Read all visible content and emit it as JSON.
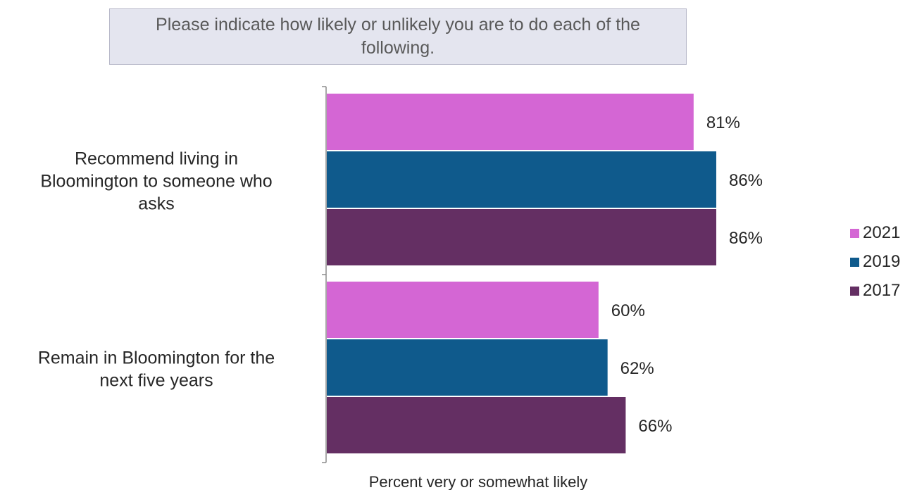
{
  "title": "Please indicate how likely or unlikely you are to do each of the following.",
  "chart_data": {
    "type": "bar",
    "orientation": "horizontal",
    "title": "Please indicate how likely or unlikely you are to do each of the following.",
    "xlabel": "Percent very or somewhat likely",
    "ylabel": "",
    "xlim": [
      0,
      100
    ],
    "grid": false,
    "legend_position": "right",
    "categories": [
      "Recommend living in Bloomington to someone who asks",
      "Remain in Bloomington for the next five years"
    ],
    "category_lines": [
      [
        "Recommend living in",
        "Bloomington to someone who",
        "asks"
      ],
      [
        "Remain in Bloomington for the",
        "next five years"
      ]
    ],
    "series": [
      {
        "name": "2021",
        "color": "#d466d4",
        "values": [
          81,
          60
        ],
        "labels": [
          "81%",
          "60%"
        ]
      },
      {
        "name": "2019",
        "color": "#0f5a8c",
        "values": [
          86,
          62
        ],
        "labels": [
          "86%",
          "62%"
        ]
      },
      {
        "name": "2017",
        "color": "#642f63",
        "values": [
          86,
          66
        ],
        "labels": [
          "86%",
          "66%"
        ]
      }
    ]
  }
}
